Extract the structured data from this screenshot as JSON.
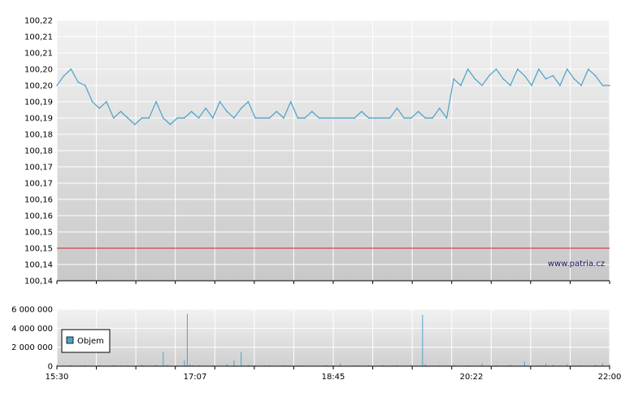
{
  "chart_data": [
    {
      "type": "line",
      "name": "price",
      "yticks": [
        "100,22",
        "100,21",
        "100,21",
        "100,20",
        "100,20",
        "100,19",
        "100,19",
        "100,18",
        "100,18",
        "100,17",
        "100,17",
        "100,16",
        "100,16",
        "100,15",
        "100,15",
        "100,14",
        "100,14"
      ],
      "ylim": [
        100.14,
        100.22
      ],
      "xlim": [
        "15:30",
        "22:00"
      ],
      "reference_line": 100.15,
      "watermark": "www.patria.cz",
      "grid": true,
      "series": [
        {
          "color": "#4aa3c9",
          "x": [
            "15:30",
            "15:35",
            "15:40",
            "15:45",
            "15:50",
            "15:55",
            "16:00",
            "16:05",
            "16:10",
            "16:15",
            "16:20",
            "16:25",
            "16:30",
            "16:35",
            "16:40",
            "16:45",
            "16:50",
            "16:55",
            "17:00",
            "17:05",
            "17:10",
            "17:15",
            "17:20",
            "17:25",
            "17:30",
            "17:35",
            "17:40",
            "17:45",
            "17:50",
            "17:55",
            "18:00",
            "18:05",
            "18:10",
            "18:15",
            "18:20",
            "18:25",
            "18:30",
            "18:35",
            "18:40",
            "18:45",
            "18:50",
            "18:55",
            "19:00",
            "19:05",
            "19:10",
            "19:15",
            "19:20",
            "19:25",
            "19:30",
            "19:35",
            "19:40",
            "19:45",
            "19:50",
            "19:55",
            "20:00",
            "20:05",
            "20:10",
            "20:15",
            "20:20",
            "20:25",
            "20:30",
            "20:35",
            "20:40",
            "20:45",
            "20:50",
            "20:55",
            "21:00",
            "21:05",
            "21:10",
            "21:15",
            "21:20",
            "21:25",
            "21:30",
            "21:35",
            "21:40",
            "21:45",
            "21:50",
            "21:55",
            "22:00"
          ],
          "y": [
            100.2,
            100.203,
            100.205,
            100.201,
            100.2,
            100.195,
            100.193,
            100.195,
            100.19,
            100.192,
            100.19,
            100.188,
            100.19,
            100.19,
            100.195,
            100.19,
            100.188,
            100.19,
            100.19,
            100.192,
            100.19,
            100.193,
            100.19,
            100.195,
            100.192,
            100.19,
            100.193,
            100.195,
            100.19,
            100.19,
            100.19,
            100.192,
            100.19,
            100.195,
            100.19,
            100.19,
            100.192,
            100.19,
            100.19,
            100.19,
            100.19,
            100.19,
            100.19,
            100.192,
            100.19,
            100.19,
            100.19,
            100.19,
            100.193,
            100.19,
            100.19,
            100.192,
            100.19,
            100.19,
            100.193,
            100.19,
            100.202,
            100.2,
            100.205,
            100.202,
            100.2,
            100.203,
            100.205,
            100.202,
            100.2,
            100.205,
            100.203,
            100.2,
            100.205,
            100.202,
            100.203,
            100.2,
            100.205,
            100.202,
            100.2,
            100.205,
            100.203,
            100.2,
            100.2
          ]
        }
      ]
    },
    {
      "type": "bar",
      "name": "volume",
      "yticks": [
        "6 000 000",
        "4 000 000",
        "2 000 000",
        "0"
      ],
      "ylim": [
        0,
        6000000
      ],
      "xticks": [
        "15:30",
        "17:07",
        "18:45",
        "20:22",
        "22:00"
      ],
      "legend": {
        "label": "Objem",
        "placement": "left"
      },
      "color": "#4aa3c9",
      "grid": true,
      "x": [
        "15:30",
        "15:40",
        "15:50",
        "16:00",
        "16:10",
        "16:20",
        "16:30",
        "16:40",
        "16:45",
        "16:48",
        "16:55",
        "17:00",
        "17:02",
        "17:04",
        "17:06",
        "17:10",
        "17:20",
        "17:30",
        "17:35",
        "17:40",
        "17:45",
        "17:50",
        "18:00",
        "18:10",
        "18:20",
        "18:30",
        "18:40",
        "18:45",
        "18:50",
        "19:00",
        "19:10",
        "19:20",
        "19:30",
        "19:40",
        "19:48",
        "19:50",
        "20:00",
        "20:10",
        "20:20",
        "20:30",
        "20:40",
        "20:50",
        "21:00",
        "21:10",
        "21:15",
        "21:20",
        "21:30",
        "21:40",
        "21:50",
        "21:55",
        "22:00"
      ],
      "values": [
        150000,
        100000,
        120000,
        90000,
        110000,
        100000,
        150000,
        130000,
        1500000,
        120000,
        100000,
        600000,
        5500000,
        200000,
        100000,
        120000,
        100000,
        200000,
        600000,
        1500000,
        120000,
        100000,
        100000,
        110000,
        90000,
        100000,
        120000,
        100000,
        300000,
        100000,
        90000,
        100000,
        110000,
        150000,
        5400000,
        200000,
        100000,
        150000,
        90000,
        300000,
        100000,
        150000,
        500000,
        100000,
        300000,
        150000,
        200000,
        100000,
        150000,
        300000,
        200000
      ]
    }
  ]
}
